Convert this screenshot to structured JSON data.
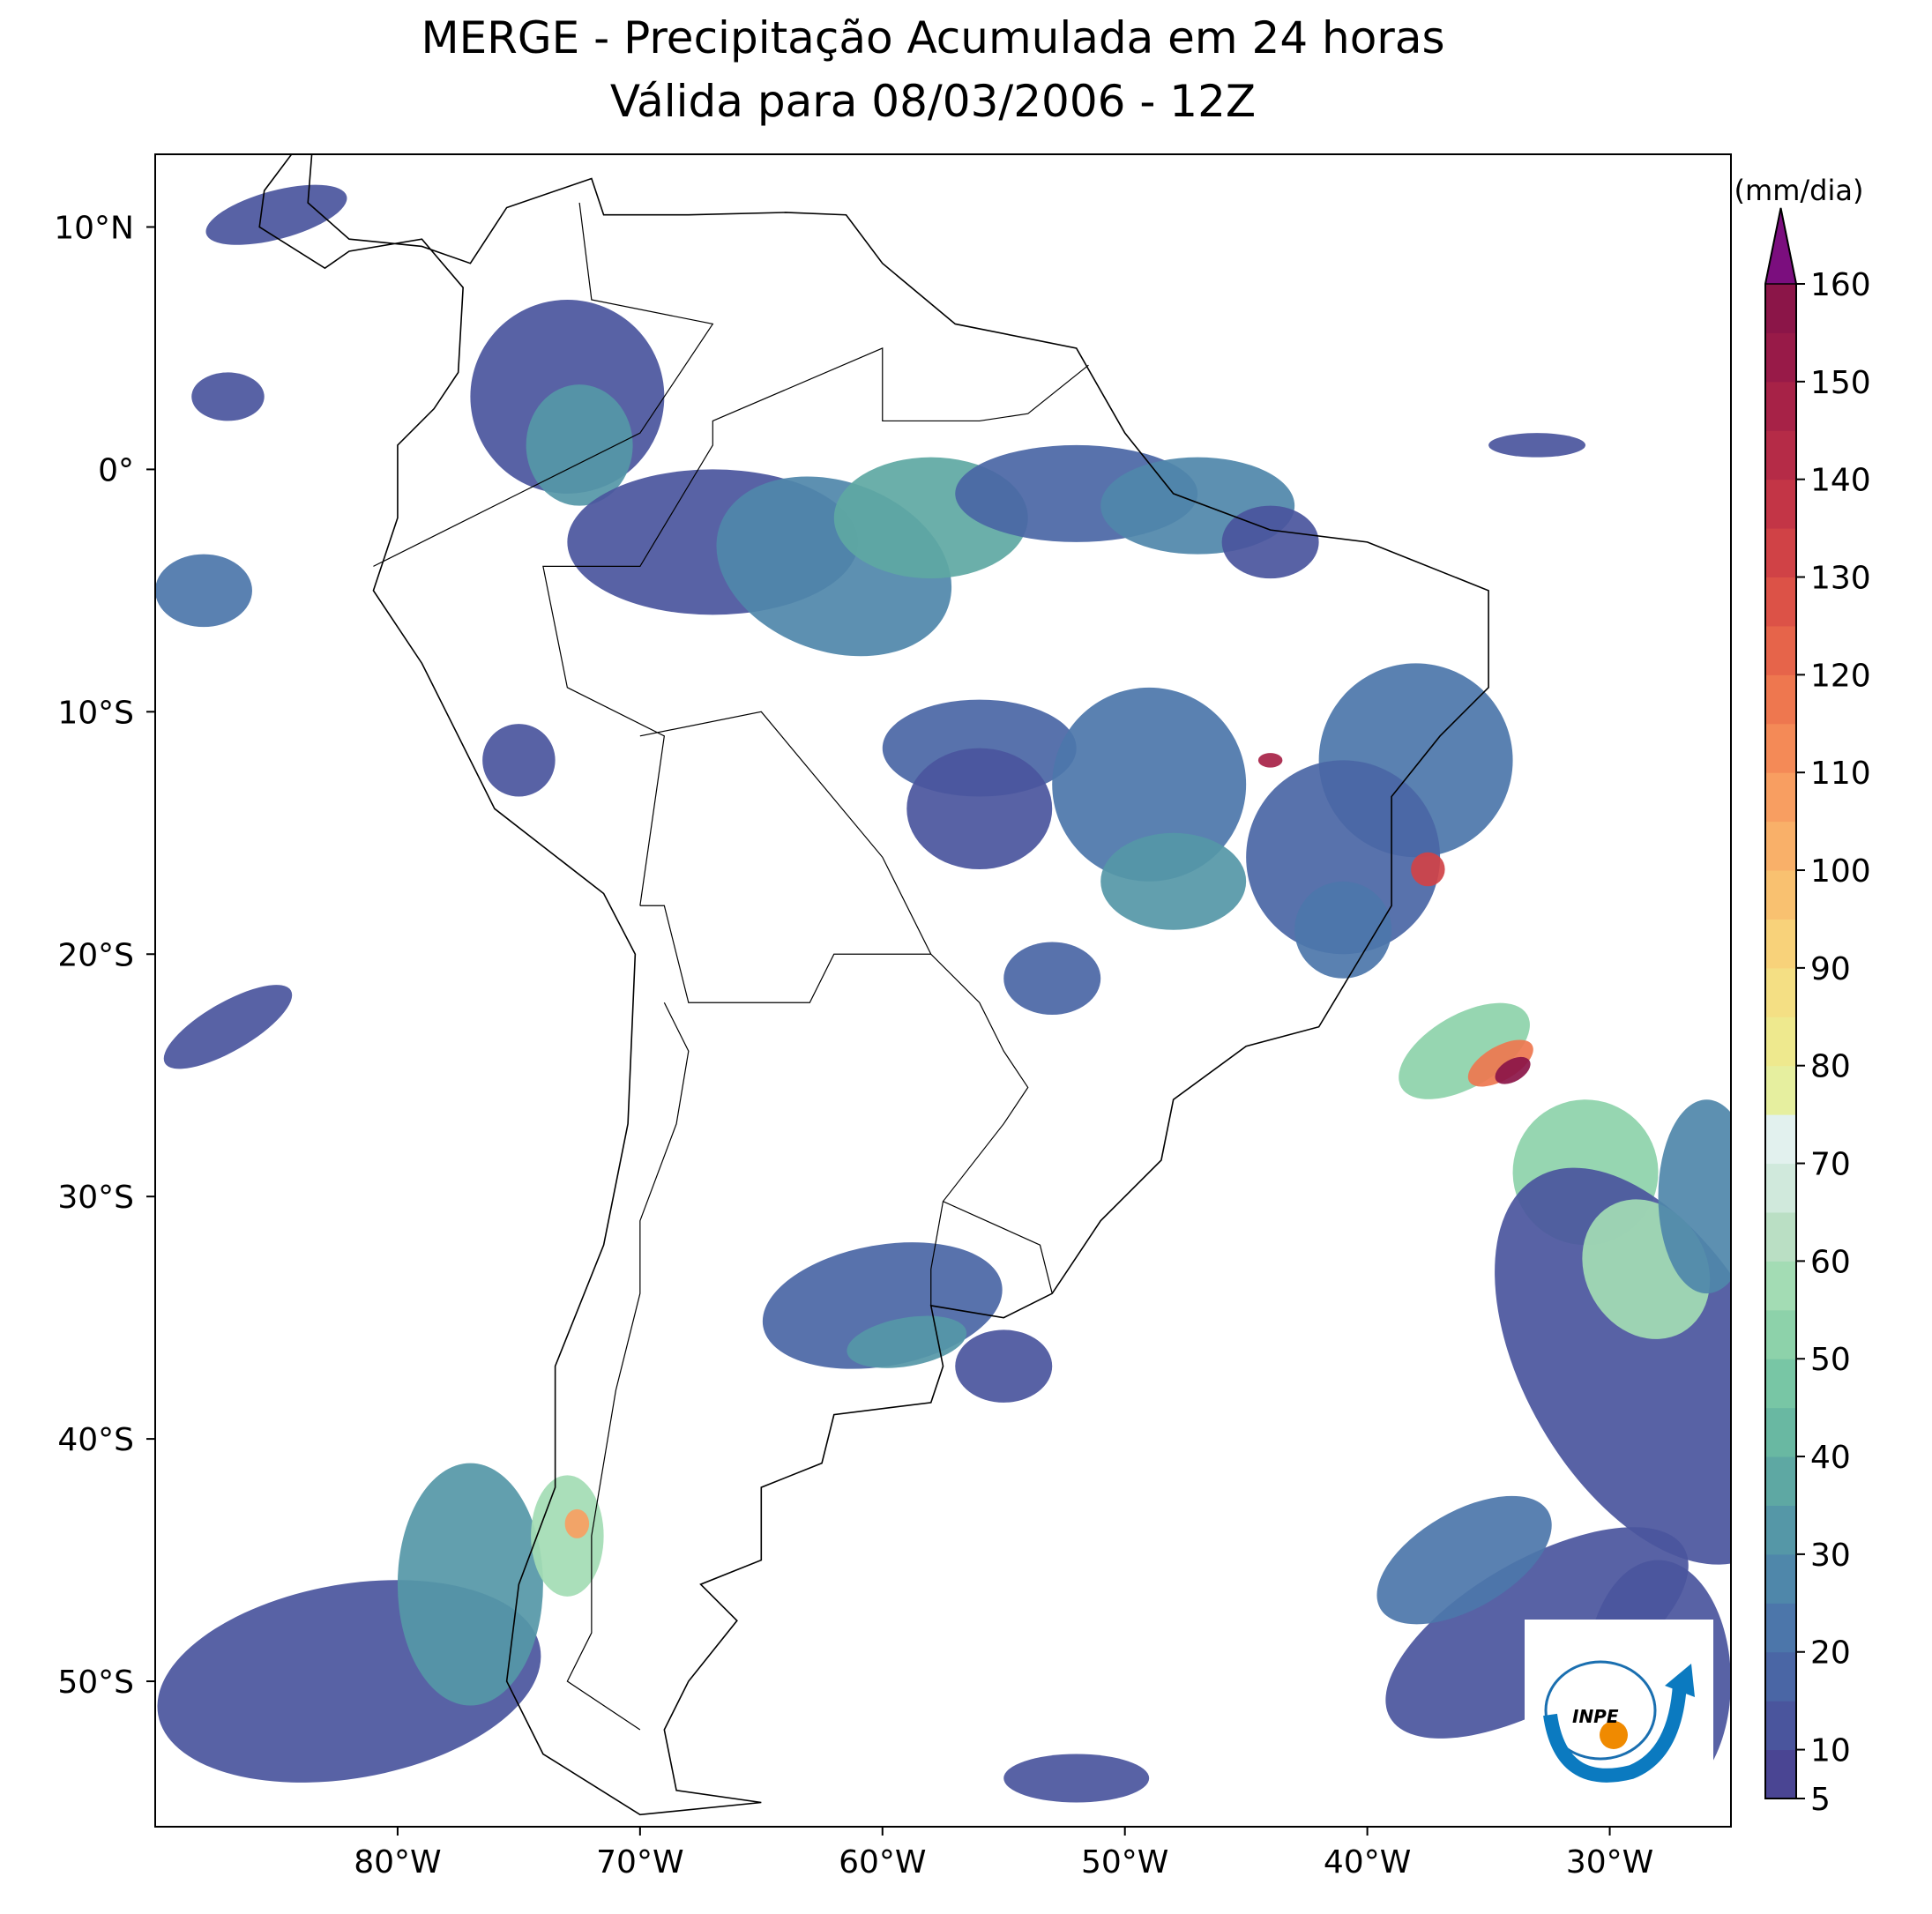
{
  "chart_data": {
    "type": "map",
    "title": "MERGE - Precipitação Acumulada em 24 horas",
    "subtitle": "Válida para 08/03/2006 - 12Z",
    "xlim": [
      -90,
      -25
    ],
    "ylim": [
      -56,
      13
    ],
    "xticks": [
      {
        "value": -80,
        "label": "80°W"
      },
      {
        "value": -70,
        "label": "70°W"
      },
      {
        "value": -60,
        "label": "60°W"
      },
      {
        "value": -50,
        "label": "50°W"
      },
      {
        "value": -40,
        "label": "40°W"
      },
      {
        "value": -30,
        "label": "30°W"
      }
    ],
    "yticks": [
      {
        "value": 10,
        "label": "10°N"
      },
      {
        "value": 0,
        "label": "0°"
      },
      {
        "value": -10,
        "label": "10°S"
      },
      {
        "value": -20,
        "label": "20°S"
      },
      {
        "value": -30,
        "label": "30°S"
      },
      {
        "value": -40,
        "label": "40°S"
      },
      {
        "value": -50,
        "label": "50°S"
      }
    ],
    "colorbar": {
      "label": "(mm/dia)",
      "lim": [
        5,
        160
      ],
      "ticks": [
        5,
        10,
        20,
        30,
        40,
        50,
        60,
        70,
        80,
        90,
        100,
        110,
        120,
        130,
        140,
        150,
        160
      ],
      "colors": [
        "#4a4593",
        "#4a559d",
        "#4a66a5",
        "#4c76aa",
        "#4f87aa",
        "#5597a7",
        "#5ea8a3",
        "#69b8a2",
        "#78c6a5",
        "#8dd2aa",
        "#a3dcb4",
        "#badfc4",
        "#d0e9dc",
        "#e2f1ee",
        "#e6ef9f",
        "#eee98e",
        "#f4df84",
        "#f8d27a",
        "#f9c170",
        "#f9b069",
        "#f89e61",
        "#f48a57",
        "#ee774f",
        "#e6644a",
        "#dc5247",
        "#d04246",
        "#c33546",
        "#b52b47",
        "#a72247",
        "#981a48",
        "#8b1548"
      ],
      "extend_color": "#7b0e7e"
    },
    "logo_text": "INPE"
  }
}
